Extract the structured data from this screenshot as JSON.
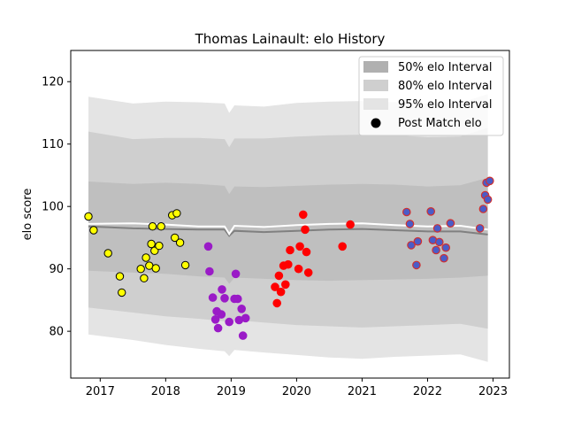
{
  "chart_data": {
    "type": "scatter",
    "title": "Thomas Lainault: elo History",
    "xlabel": "",
    "ylabel": "elo score",
    "xlim": [
      2016.55,
      2023.25
    ],
    "ylim": [
      72.5,
      125
    ],
    "x_ticks": [
      2017,
      2018,
      2019,
      2020,
      2021,
      2022,
      2023
    ],
    "x_tick_labels": [
      "2017",
      "2018",
      "2019",
      "2020",
      "2021",
      "2022",
      "2023"
    ],
    "y_ticks": [
      80,
      90,
      100,
      110,
      120
    ],
    "y_tick_labels": [
      "80",
      "90",
      "100",
      "110",
      "120"
    ],
    "grid": false,
    "legend_position": "top-right",
    "legend": {
      "band50": "50% elo Interval",
      "band80": "80% elo Interval",
      "band95": "95% elo Interval",
      "post_match": "Post Match elo"
    },
    "colors": {
      "band95": "#e4e4e4",
      "band80": "#cfcfcf",
      "band50": "#bfbfbf",
      "median_line": "#808080",
      "mean_line": "#ffffff",
      "yellow": "#ffff00",
      "purple": "#9a1bc7",
      "red": "#ff0000",
      "blue_face": "#4a5cc8",
      "blue_edge": "#d03030"
    },
    "bands": {
      "x": [
        2016.82,
        2017.5,
        2018.0,
        2018.5,
        2018.9,
        2018.97,
        2019.05,
        2019.5,
        2020.0,
        2020.5,
        2021.0,
        2021.5,
        2022.0,
        2022.5,
        2022.92
      ],
      "upper95": [
        117.6,
        116.5,
        116.8,
        116.7,
        116.5,
        115.0,
        116.2,
        116.0,
        116.6,
        116.8,
        116.9,
        116.7,
        116.5,
        116.6,
        118.0
      ],
      "lower95": [
        79.5,
        78.6,
        77.8,
        77.2,
        76.8,
        76.0,
        77.0,
        76.6,
        76.2,
        75.8,
        75.6,
        75.9,
        76.1,
        76.3,
        75.1
      ],
      "upper80": [
        112.0,
        110.8,
        111.0,
        111.0,
        110.8,
        109.5,
        110.9,
        110.9,
        111.2,
        111.4,
        111.5,
        111.4,
        111.1,
        111.2,
        112.6
      ],
      "lower80": [
        83.8,
        83.0,
        82.4,
        82.0,
        81.6,
        80.8,
        81.8,
        81.4,
        81.0,
        80.8,
        80.6,
        80.8,
        81.0,
        81.2,
        80.4
      ],
      "upper50": [
        104.0,
        103.6,
        103.8,
        103.6,
        103.3,
        102.0,
        103.2,
        103.1,
        103.3,
        103.5,
        103.6,
        103.5,
        103.2,
        103.4,
        104.6
      ],
      "lower50": [
        89.7,
        89.4,
        89.2,
        88.8,
        88.6,
        87.6,
        88.6,
        88.4,
        88.2,
        88.1,
        88.2,
        88.3,
        88.4,
        88.6,
        88.9
      ],
      "median": [
        96.8,
        96.5,
        96.4,
        96.3,
        96.3,
        95.3,
        96.1,
        95.9,
        96.1,
        96.3,
        96.4,
        96.2,
        96.0,
        96.0,
        95.5
      ],
      "mean": [
        97.2,
        97.3,
        97.1,
        96.8,
        96.8,
        95.6,
        96.9,
        96.7,
        97.0,
        97.2,
        97.3,
        97.0,
        96.8,
        96.9,
        96.3
      ]
    },
    "series": [
      {
        "group": "2017-2018",
        "color_key": "yellow",
        "points": [
          [
            2016.82,
            98.4
          ],
          [
            2016.9,
            96.2
          ],
          [
            2017.12,
            92.5
          ],
          [
            2017.3,
            88.8
          ],
          [
            2017.33,
            86.2
          ],
          [
            2017.62,
            90.0
          ],
          [
            2017.67,
            88.5
          ],
          [
            2017.7,
            91.8
          ],
          [
            2017.75,
            90.5
          ],
          [
            2017.78,
            94.0
          ],
          [
            2017.8,
            96.8
          ],
          [
            2017.83,
            92.9
          ],
          [
            2017.85,
            90.1
          ],
          [
            2017.9,
            93.7
          ],
          [
            2017.93,
            96.8
          ],
          [
            2018.1,
            98.6
          ],
          [
            2018.14,
            95.0
          ],
          [
            2018.17,
            98.9
          ],
          [
            2018.22,
            94.2
          ],
          [
            2018.3,
            90.6
          ]
        ]
      },
      {
        "group": "2018-2019",
        "color_key": "purple",
        "points": [
          [
            2018.65,
            93.6
          ],
          [
            2018.67,
            89.6
          ],
          [
            2018.72,
            85.4
          ],
          [
            2018.76,
            81.9
          ],
          [
            2018.78,
            83.2
          ],
          [
            2018.8,
            80.5
          ],
          [
            2018.85,
            82.7
          ],
          [
            2018.86,
            86.7
          ],
          [
            2018.9,
            85.3
          ],
          [
            2018.97,
            81.5
          ],
          [
            2019.05,
            85.2
          ],
          [
            2019.07,
            89.2
          ],
          [
            2019.1,
            85.2
          ],
          [
            2019.12,
            81.8
          ],
          [
            2019.16,
            83.6
          ],
          [
            2019.18,
            79.3
          ],
          [
            2019.22,
            82.1
          ]
        ]
      },
      {
        "group": "2019-2020",
        "color_key": "red",
        "points": [
          [
            2019.67,
            87.1
          ],
          [
            2019.7,
            84.5
          ],
          [
            2019.73,
            88.9
          ],
          [
            2019.76,
            86.3
          ],
          [
            2019.8,
            90.5
          ],
          [
            2019.83,
            87.5
          ],
          [
            2019.87,
            90.7
          ],
          [
            2019.9,
            93.0
          ],
          [
            2020.03,
            90.0
          ],
          [
            2020.05,
            93.6
          ],
          [
            2020.1,
            98.7
          ],
          [
            2020.13,
            96.3
          ],
          [
            2020.15,
            92.7
          ],
          [
            2020.18,
            89.4
          ],
          [
            2020.7,
            93.6
          ],
          [
            2020.82,
            97.1
          ]
        ]
      },
      {
        "group": "2021-2022",
        "color_key": "blue",
        "points": [
          [
            2021.68,
            99.1
          ],
          [
            2021.73,
            97.2
          ],
          [
            2021.75,
            93.8
          ],
          [
            2021.83,
            90.6
          ],
          [
            2021.85,
            94.4
          ],
          [
            2022.05,
            99.2
          ],
          [
            2022.08,
            94.6
          ],
          [
            2022.13,
            93.0
          ],
          [
            2022.15,
            96.5
          ],
          [
            2022.18,
            94.3
          ],
          [
            2022.25,
            91.7
          ],
          [
            2022.28,
            93.4
          ],
          [
            2022.35,
            97.3
          ],
          [
            2022.8,
            96.5
          ],
          [
            2022.85,
            99.6
          ],
          [
            2022.88,
            101.8
          ],
          [
            2022.9,
            103.8
          ],
          [
            2022.92,
            101.1
          ],
          [
            2022.95,
            104.1
          ]
        ]
      }
    ]
  }
}
